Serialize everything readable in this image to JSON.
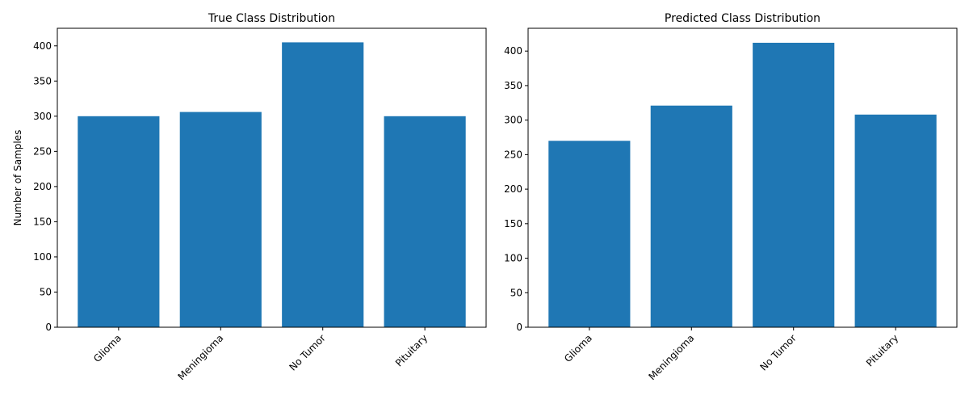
{
  "chart_data": [
    {
      "type": "bar",
      "title": "True Class Distribution",
      "xlabel": "",
      "ylabel": "Number of Samples",
      "categories": [
        "Glioma",
        "Meningioma",
        "No Tumor",
        "Pituitary"
      ],
      "values": [
        300,
        306,
        405,
        300
      ],
      "ylim": [
        0,
        425
      ],
      "yticks": [
        0,
        50,
        100,
        150,
        200,
        250,
        300,
        350,
        400
      ],
      "bar_color": "#1f77b4",
      "grid": false,
      "xtick_rotation": 45
    },
    {
      "type": "bar",
      "title": "Predicted Class Distribution",
      "xlabel": "",
      "ylabel": "",
      "categories": [
        "Glioma",
        "Meningioma",
        "No Tumor",
        "Pituitary"
      ],
      "values": [
        270,
        321,
        412,
        308
      ],
      "ylim": [
        0,
        433
      ],
      "yticks": [
        0,
        50,
        100,
        150,
        200,
        250,
        300,
        350,
        400
      ],
      "bar_color": "#1f77b4",
      "grid": false,
      "xtick_rotation": 45
    }
  ]
}
